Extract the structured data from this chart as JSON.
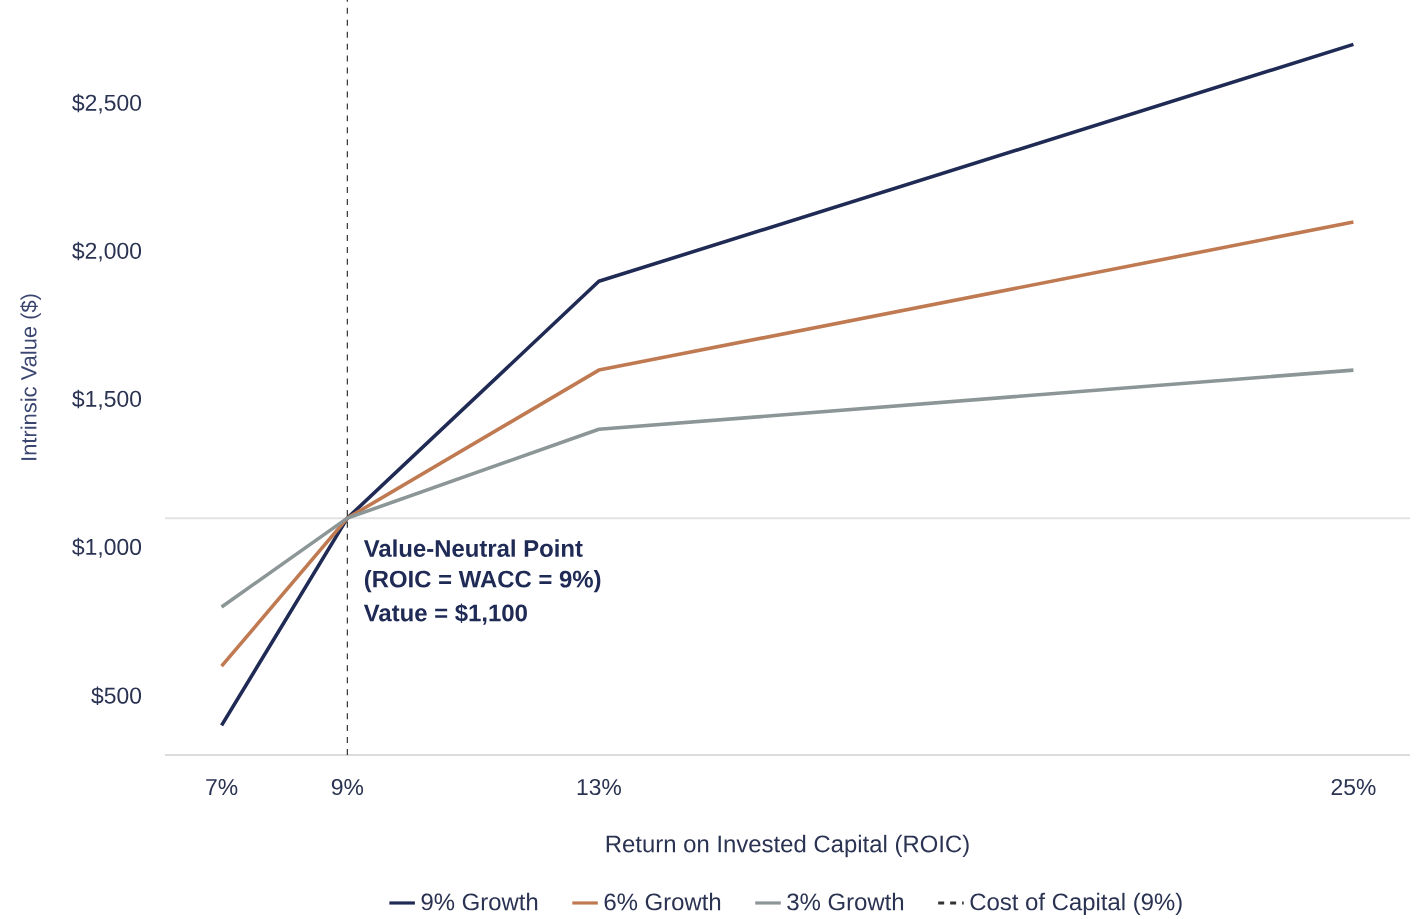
{
  "chart_data": {
    "type": "line",
    "xlabel": "Return on Invested Capital (ROIC)",
    "ylabel": "Intrinsic Value ($)",
    "x": [
      7,
      9,
      13,
      25
    ],
    "series": [
      {
        "name": "9% Growth",
        "color": "#1f2a55",
        "values": [
          400,
          1100,
          1900,
          2700
        ]
      },
      {
        "name": "6% Growth",
        "color": "#c07a52",
        "values": [
          600,
          1100,
          1600,
          2100
        ]
      },
      {
        "name": "3% Growth",
        "color": "#8c9697",
        "values": [
          800,
          1100,
          1400,
          1600
        ]
      }
    ],
    "xlim": [
      6.1,
      25.9
    ],
    "ylim": [
      300,
      2850
    ],
    "xticks": [
      {
        "value": 7,
        "label": "7%"
      },
      {
        "value": 9,
        "label": "9%"
      },
      {
        "value": 13,
        "label": "13%"
      },
      {
        "value": 25,
        "label": "25%"
      }
    ],
    "yticks": [
      {
        "value": 500,
        "label": "$500"
      },
      {
        "value": 1000,
        "label": "$1,000"
      },
      {
        "value": 1500,
        "label": "$1,500"
      },
      {
        "value": 2000,
        "label": "$2,000"
      },
      {
        "value": 2500,
        "label": "$2,500"
      }
    ],
    "ref_lines": [
      {
        "axis": "x",
        "value": 9,
        "label": "Cost of Capital (9%)",
        "line_style": "dashed",
        "color": "#333333"
      },
      {
        "axis": "y",
        "value": 1100,
        "color": "#e3e3e3"
      }
    ],
    "annotations": [
      {
        "text": "Value-Neutral Point",
        "x": 9,
        "y": 1100
      },
      "(ROIC = WACC = 9%)",
      "Vatue = $1,100"
    ],
    "legend": "bottom",
    "marker": "none",
    "line_style": "solid"
  }
}
